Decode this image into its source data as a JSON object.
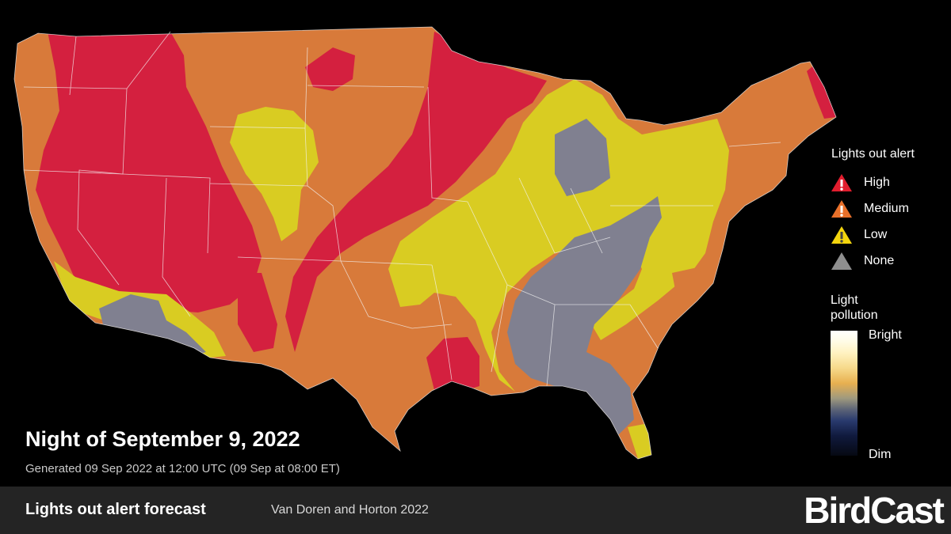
{
  "title": "Night of September 9, 2022",
  "generated": "Generated 09 Sep 2022 at 12:00 UTC (09 Sep at 08:00 ET)",
  "footer": {
    "title": "Lights out alert forecast",
    "citation": "Van Doren and Horton 2022",
    "logo": "BirdCast"
  },
  "legend": {
    "title": "Lights out alert",
    "items": [
      {
        "label": "High",
        "color": "#e11d2e",
        "icon": "alert-triangle-icon"
      },
      {
        "label": "Medium",
        "color": "#e8702a",
        "icon": "alert-triangle-icon"
      },
      {
        "label": "Low",
        "color": "#f3d50e",
        "icon": "alert-triangle-icon"
      },
      {
        "label": "None",
        "color": "#8e8e8e",
        "icon": "triangle-icon"
      }
    ]
  },
  "light_pollution": {
    "title_line1": "Light",
    "title_line2": "pollution",
    "max_label": "Bright",
    "min_label": "Dim"
  },
  "colors": {
    "high": "#d4203f",
    "medium": "#d87a3a",
    "low": "#d9cc22",
    "none": "#808090",
    "background": "#000000",
    "footer": "#242424"
  }
}
